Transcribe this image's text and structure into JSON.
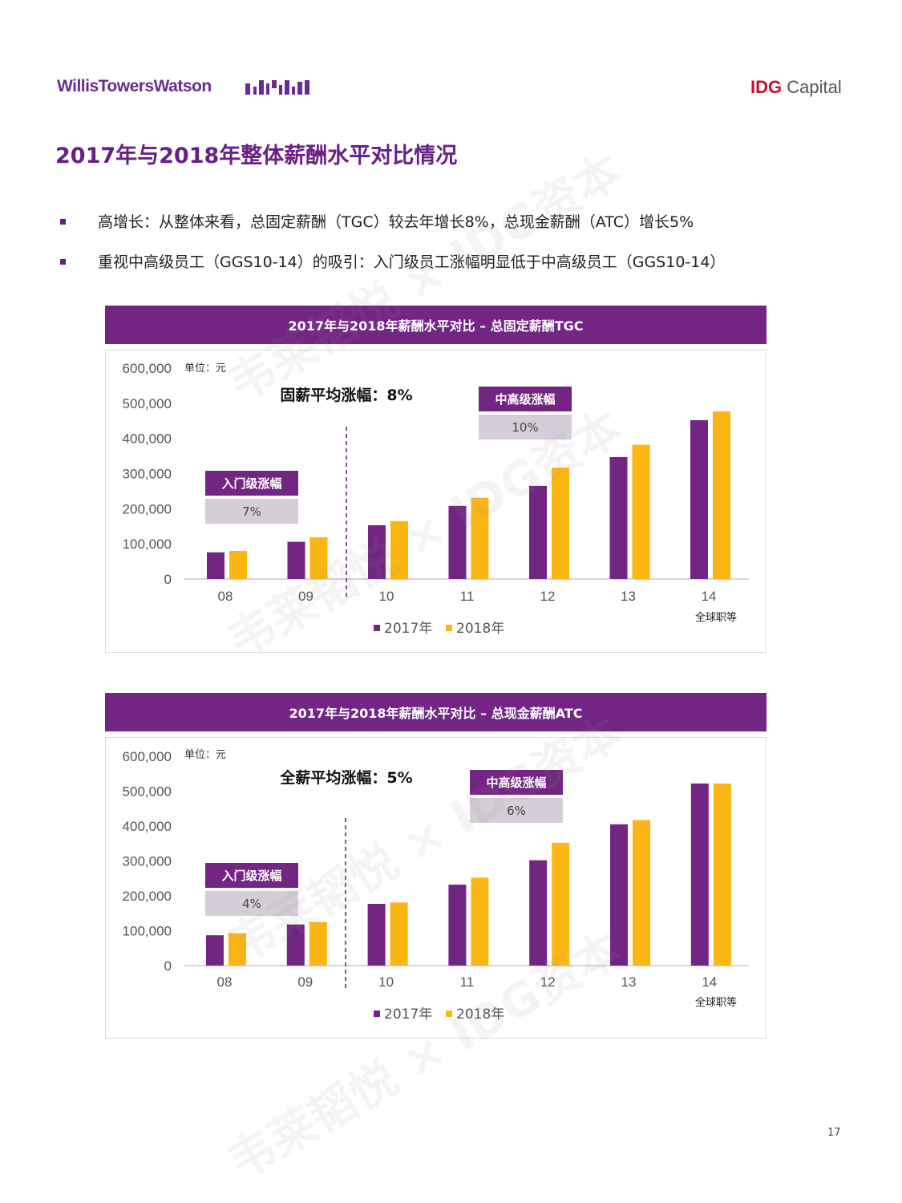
{
  "header": {
    "logo_left": "WillisTowersWatson",
    "logo_right_brand": "IDG",
    "logo_right_text": " Capital"
  },
  "page_title": "2017年与2018年整体薪酬水平对比情况",
  "bullets": [
    "高增长：从整体来看，总固定薪酬（TGC）较去年增长8%，总现金薪酬（ATC）增长5%",
    "重视中高级员工（GGS10-14）的吸引：入门级员工涨幅明显低于中高级员工（GGS10-14）"
  ],
  "watermark": "韦莱韬悦 × IDG资本",
  "page_number": "17",
  "colors": {
    "purple": "#722583",
    "gold": "#fbb614",
    "label_bg": "#d5cdd7"
  },
  "chart_data": [
    {
      "type": "bar",
      "title": "2017年与2018年薪酬水平对比 – 总固定薪酬TGC",
      "unit_label": "单位：元",
      "highlight": "固薪平均涨幅：8%",
      "xlabel": "全球职等",
      "categories": [
        "08",
        "09",
        "10",
        "11",
        "12",
        "13",
        "14"
      ],
      "series": [
        {
          "name": "2017年",
          "values": [
            76000,
            106000,
            153000,
            208000,
            265000,
            347000,
            452000
          ]
        },
        {
          "name": "2018年",
          "values": [
            80000,
            119000,
            165000,
            231000,
            317000,
            382000,
            477000
          ]
        }
      ],
      "yticks": [
        "600,000",
        "500,000",
        "400,000",
        "300,000",
        "200,000",
        "100,000",
        "0"
      ],
      "ylim": [
        0,
        600000
      ],
      "annotations": [
        {
          "label": "入门级涨幅",
          "value": "7%"
        },
        {
          "label": "中高级涨幅",
          "value": "10%"
        }
      ],
      "legend": [
        "2017年",
        "2018年"
      ]
    },
    {
      "type": "bar",
      "title": "2017年与2018年薪酬水平对比 – 总现金薪酬ATC",
      "unit_label": "单位：元",
      "highlight": "全薪平均涨幅：5%",
      "xlabel": "全球职等",
      "categories": [
        "08",
        "09",
        "10",
        "11",
        "12",
        "13",
        "14"
      ],
      "series": [
        {
          "name": "2017年",
          "values": [
            87000,
            118000,
            177000,
            232000,
            302000,
            405000,
            522000
          ]
        },
        {
          "name": "2018年",
          "values": [
            93000,
            125000,
            181000,
            252000,
            352000,
            417000,
            522000
          ]
        }
      ],
      "yticks": [
        "600,000",
        "500,000",
        "400,000",
        "300,000",
        "200,000",
        "100,000",
        "0"
      ],
      "ylim": [
        0,
        600000
      ],
      "annotations": [
        {
          "label": "入门级涨幅",
          "value": "4%"
        },
        {
          "label": "中高级涨幅",
          "value": "6%"
        }
      ],
      "legend": [
        "2017年",
        "2018年"
      ]
    }
  ]
}
